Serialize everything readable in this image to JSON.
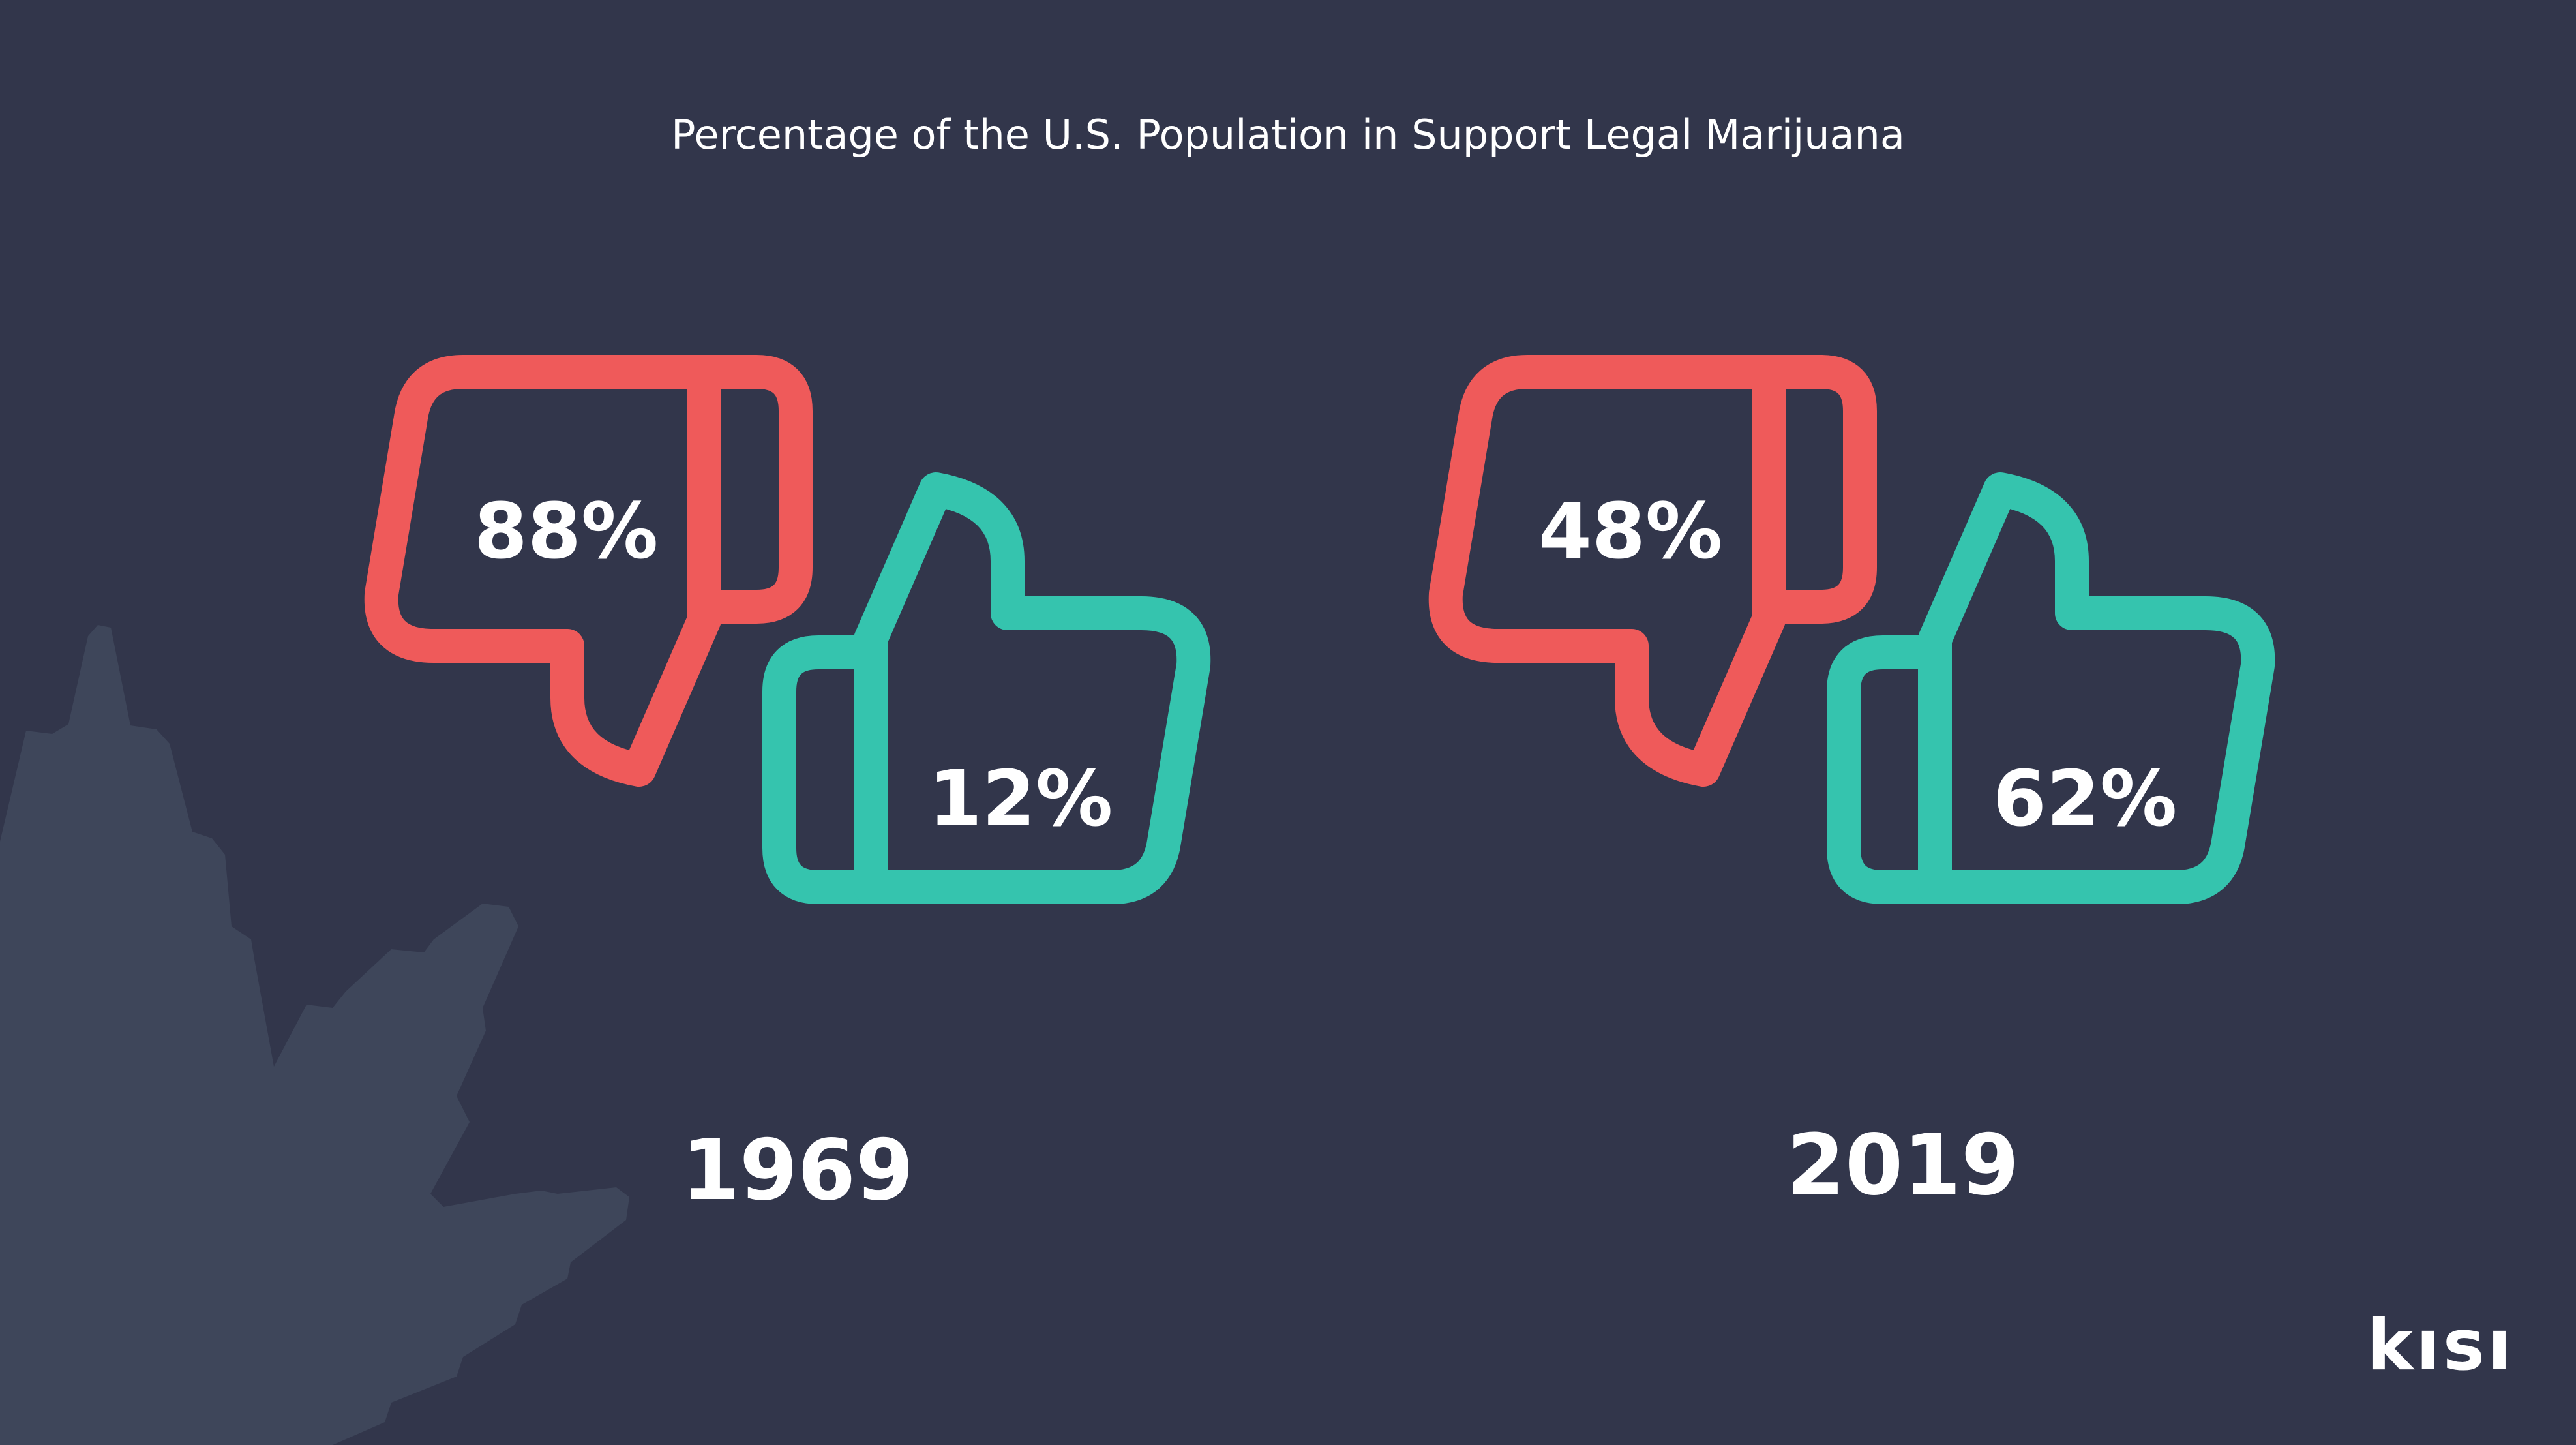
{
  "title": "Percentage of the U.S. Population in Support Legal Marijuana",
  "logo_text": "kısı",
  "colors": {
    "background": "#32364b",
    "oppose": "#ef5a5a",
    "support": "#35c4ae",
    "leaf": "#3e465a",
    "text": "#ffffff"
  },
  "chart_data": {
    "type": "pictogram",
    "categories": [
      "1969",
      "2019"
    ],
    "series": [
      {
        "name": "",
        "icon": "thumbs-down-icon",
        "color": "#ef5a5a",
        "values": [
          88,
          48
        ]
      },
      {
        "name": "",
        "icon": "thumbs-up-icon",
        "color": "#35c4ae",
        "values": [
          12,
          62
        ]
      }
    ],
    "labels": [
      {
        "year": "1969",
        "oppose": "88%",
        "support": "12%"
      },
      {
        "year": "2019",
        "oppose": "48%",
        "support": "62%"
      }
    ],
    "unit": "%"
  }
}
